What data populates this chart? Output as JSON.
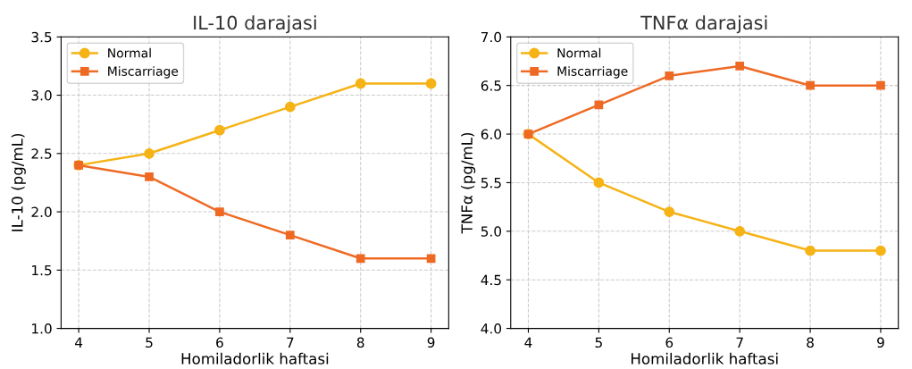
{
  "chart_data": [
    {
      "type": "line",
      "title": "IL-10 darajasi",
      "xlabel": "Homiladorlik haftasi",
      "ylabel": "IL-10 (pg/mL)",
      "x": [
        4,
        5,
        6,
        7,
        8,
        9
      ],
      "series": [
        {
          "name": "Normal",
          "color": "#f5b316",
          "marker": "circle",
          "values": [
            2.4,
            2.5,
            2.7,
            2.9,
            3.1,
            3.1
          ]
        },
        {
          "name": "Miscarriage",
          "color": "#ee6a24",
          "marker": "square",
          "values": [
            2.4,
            2.3,
            2.0,
            1.8,
            1.6,
            1.6
          ]
        }
      ],
      "xlim": [
        3.75,
        9.25
      ],
      "xticks": [
        4,
        5,
        6,
        7,
        8,
        9
      ],
      "ylim": [
        1.0,
        3.5
      ],
      "yticks": [
        {
          "value": 1.0,
          "label": "1.0"
        },
        {
          "value": 1.5,
          "label": "1.5"
        },
        {
          "value": 2.0,
          "label": "2.0"
        },
        {
          "value": 2.5,
          "label": "2.5"
        },
        {
          "value": 3.0,
          "label": "3.0"
        },
        {
          "value": 3.5,
          "label": "3.5"
        }
      ],
      "grid": true,
      "legend": "top left",
      "line_style": "solid"
    },
    {
      "type": "line",
      "title": "TNFα darajasi",
      "xlabel": "Homiladorlik haftasi",
      "ylabel": "TNFα (pg/mL)",
      "x": [
        4,
        5,
        6,
        7,
        8,
        9
      ],
      "series": [
        {
          "name": "Normal",
          "color": "#f5b316",
          "marker": "circle",
          "values": [
            6.0,
            5.5,
            5.2,
            5.0,
            4.8,
            4.8
          ]
        },
        {
          "name": "Miscarriage",
          "color": "#ee6a24",
          "marker": "square",
          "values": [
            6.0,
            6.3,
            6.6,
            6.7,
            6.5,
            6.5
          ]
        }
      ],
      "xlim": [
        3.75,
        9.25
      ],
      "xticks": [
        4,
        5,
        6,
        7,
        8,
        9
      ],
      "ylim": [
        4.0,
        7.0
      ],
      "yticks": [
        {
          "value": 4.0,
          "label": "4.0"
        },
        {
          "value": 4.5,
          "label": "4.5"
        },
        {
          "value": 5.0,
          "label": "5.0"
        },
        {
          "value": 5.5,
          "label": "5.5"
        },
        {
          "value": 6.0,
          "label": "6.0"
        },
        {
          "value": 6.5,
          "label": "6.5"
        },
        {
          "value": 7.0,
          "label": "7.0"
        }
      ],
      "grid": true,
      "legend": "top left",
      "line_style": "solid"
    }
  ]
}
